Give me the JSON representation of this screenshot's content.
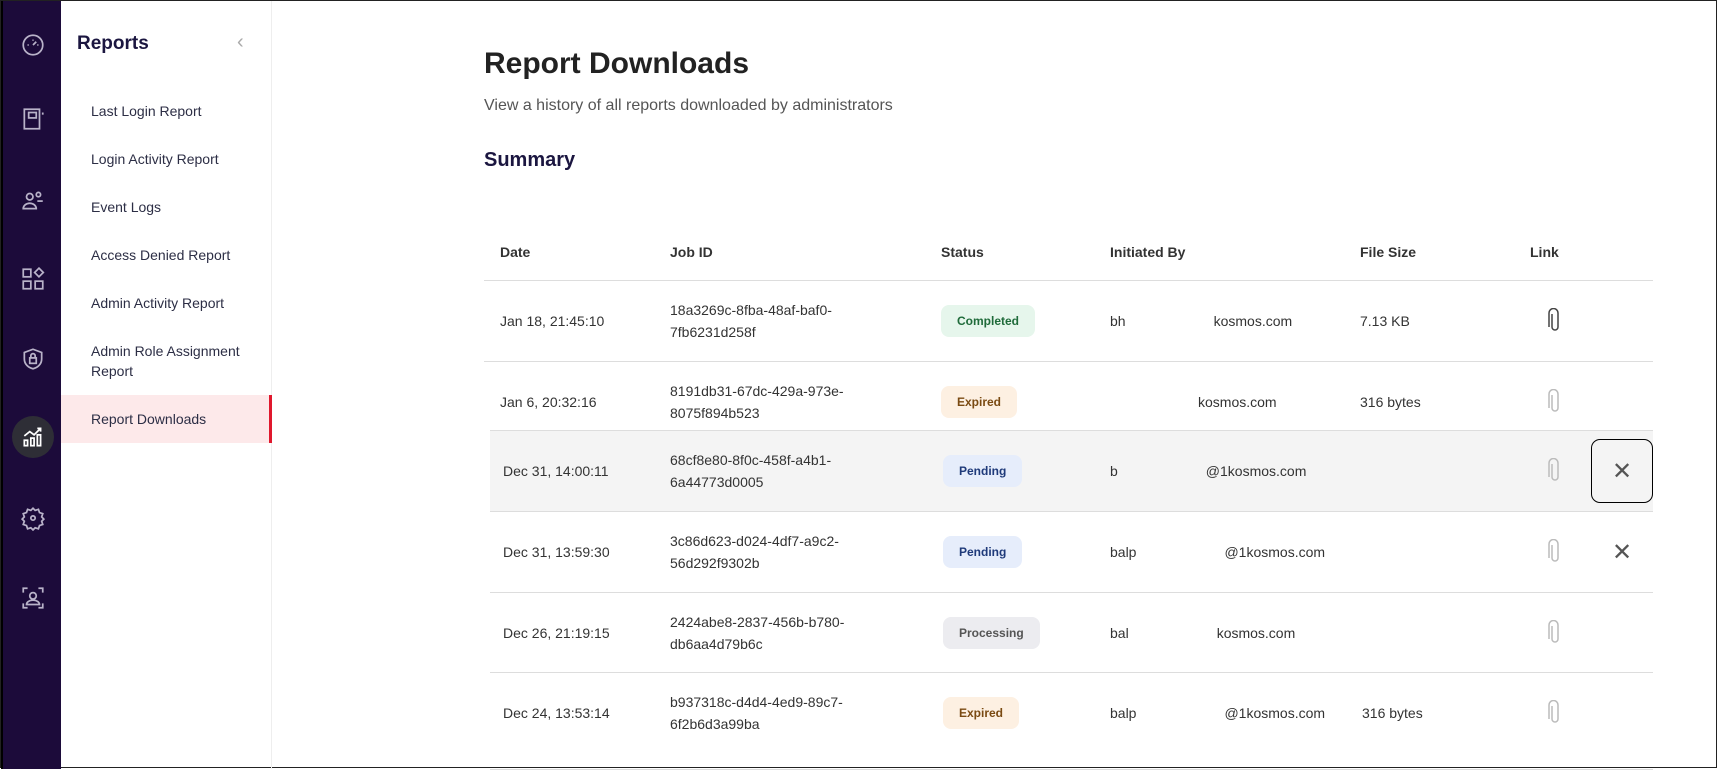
{
  "sidebar": {
    "title": "Reports",
    "items": [
      {
        "label": "Last Login Report"
      },
      {
        "label": "Login Activity Report"
      },
      {
        "label": "Event Logs"
      },
      {
        "label": "Access Denied Report"
      },
      {
        "label": "Admin Activity Report"
      },
      {
        "label": "Admin Role Assignment Report"
      },
      {
        "label": "Report Downloads",
        "active": true
      }
    ]
  },
  "rail": [
    "dashboard-icon",
    "directory-icon",
    "users-icon",
    "apps-icon",
    "security-icon",
    "reports-icon",
    "settings-icon",
    "identity-icon"
  ],
  "page": {
    "title": "Report Downloads",
    "subtitle": "View a history of all reports downloaded by administrators",
    "summary": "Summary"
  },
  "table": {
    "headers": {
      "date": "Date",
      "job": "Job ID",
      "status": "Status",
      "initiated": "Initiated By",
      "size": "File Size",
      "link": "Link"
    },
    "rows": [
      {
        "date": "Jan 18, 21:45:10",
        "job1": "18a3269c-8fba-48af-baf0-",
        "job2": "7fb6231d258f",
        "status": "Completed",
        "email_start": "bh",
        "email_end": "kosmos.com",
        "size": "7.13 KB"
      },
      {
        "date": "Jan 6, 20:32:16",
        "job1": "8191db31-67dc-429a-973e-",
        "job2": "8075f894b523",
        "status": "Expired",
        "email_start": "",
        "email_end": "kosmos.com",
        "size": "316 bytes"
      },
      {
        "date": "Dec 31, 14:00:11",
        "job1": "68cf8e80-8f0c-458f-a4b1-",
        "job2": "6a44773d0005",
        "status": "Pending",
        "email_start": "b",
        "email_end": "@1kosmos.com",
        "size": ""
      },
      {
        "date": "Dec 31, 13:59:30",
        "job1": "3c86d623-d024-4df7-a9c2-",
        "job2": "56d292f9302b",
        "status": "Pending",
        "email_start": "balp",
        "email_end": "@1kosmos.com",
        "size": ""
      },
      {
        "date": "Dec 26, 21:19:15",
        "job1": "2424abe8-2837-456b-b780-",
        "job2": "db6aa4d79b6c",
        "status": "Processing",
        "email_start": "bal",
        "email_end": "kosmos.com",
        "size": ""
      },
      {
        "date": "Dec 24, 13:53:14",
        "job1": "b937318c-d4d4-4ed9-89c7-",
        "job2": "6f2b6d3a99ba",
        "status": "Expired",
        "email_start": "balp",
        "email_end": "@1kosmos.com",
        "size": "316 bytes"
      }
    ]
  },
  "colors": {
    "rail": "#1c0b3a",
    "active_nav": "#fde9ea",
    "active_border": "#e0182d",
    "Completed": {
      "bg": "#e6f6ec",
      "fg": "#1f6b3a"
    },
    "Expired": {
      "bg": "#fdf0e2",
      "fg": "#7a4a12"
    },
    "Pending": {
      "bg": "#e6edfb",
      "fg": "#1f3a7a"
    },
    "Processing": {
      "bg": "#ececf0",
      "fg": "#555"
    }
  }
}
